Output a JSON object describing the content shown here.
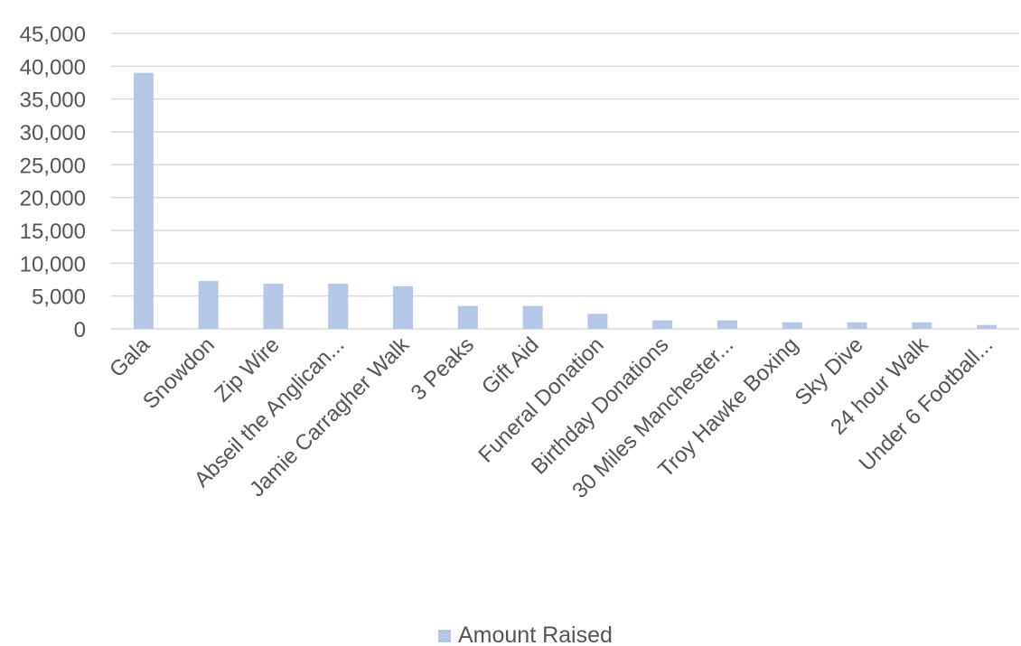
{
  "chart_data": {
    "type": "bar",
    "categories": [
      "Gala",
      "Snowdon",
      "Zip Wire",
      "Abseil the Anglican...",
      "Jamie Carragher Walk",
      "3 Peaks",
      "Gift Aid",
      "Funeral Donation",
      "Birthday Donations",
      "30 Miles Manchester...",
      "Troy Hawke Boxing",
      "Sky Dive",
      "24 hour Walk",
      "Under 6 Football..."
    ],
    "series": [
      {
        "name": "Amount Raised",
        "values": [
          39000,
          7300,
          6900,
          6900,
          6500,
          3500,
          3500,
          2300,
          1300,
          1300,
          1000,
          1000,
          1000,
          600
        ]
      }
    ],
    "title": "",
    "xlabel": "",
    "ylabel": "",
    "ylim": [
      0,
      45000
    ],
    "yticks": [
      "0",
      "5,000",
      "10,000",
      "15,000",
      "20,000",
      "25,000",
      "30,000",
      "35,000",
      "40,000",
      "45,000"
    ],
    "grid": true,
    "legend_position": "bottom",
    "bar_color": "#b4c7e7",
    "grid_color": "#d9d9d9",
    "text_color": "#555555"
  }
}
